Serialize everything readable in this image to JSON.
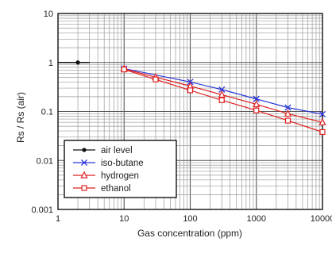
{
  "chart_data": {
    "type": "line",
    "xlabel": "Gas concentration (ppm)",
    "ylabel": "Rs / Rs (air)",
    "x_scale": "log",
    "y_scale": "log",
    "xlim": [
      1,
      10000
    ],
    "ylim": [
      0.001,
      10
    ],
    "grid": true,
    "legend_position": "bottom-left",
    "x_ticks": [
      {
        "value": 1,
        "label": "1"
      },
      {
        "value": 10,
        "label": "10"
      },
      {
        "value": 100,
        "label": "100"
      },
      {
        "value": 1000,
        "label": "1000"
      },
      {
        "value": 10000,
        "label": "10000"
      }
    ],
    "y_ticks": [
      {
        "value": 0.001,
        "label": "0.001"
      },
      {
        "value": 0.01,
        "label": "0.01"
      },
      {
        "value": 0.1,
        "label": "0.1"
      },
      {
        "value": 1,
        "label": "1"
      },
      {
        "value": 10,
        "label": "10"
      }
    ],
    "series": [
      {
        "name": "air level",
        "color": "#111111",
        "marker": "dot",
        "x": [
          1,
          2,
          3
        ],
        "y": [
          1.0,
          1.0,
          1.0
        ]
      },
      {
        "name": "iso-butane",
        "color": "#2a36d8",
        "marker": "x",
        "x": [
          10,
          100,
          300,
          1000,
          3000,
          10000
        ],
        "y": [
          0.75,
          0.4,
          0.28,
          0.18,
          0.12,
          0.088
        ]
      },
      {
        "name": "hydrogen",
        "color": "#e02020",
        "marker": "triangle",
        "x": [
          10,
          30,
          100,
          300,
          1000,
          3000,
          10000
        ],
        "y": [
          0.74,
          0.5,
          0.33,
          0.22,
          0.14,
          0.09,
          0.06
        ]
      },
      {
        "name": "ethanol",
        "color": "#e02020",
        "marker": "square",
        "x": [
          10,
          30,
          100,
          300,
          1000,
          3000,
          10000
        ],
        "y": [
          0.72,
          0.45,
          0.27,
          0.17,
          0.105,
          0.065,
          0.038
        ]
      }
    ]
  }
}
